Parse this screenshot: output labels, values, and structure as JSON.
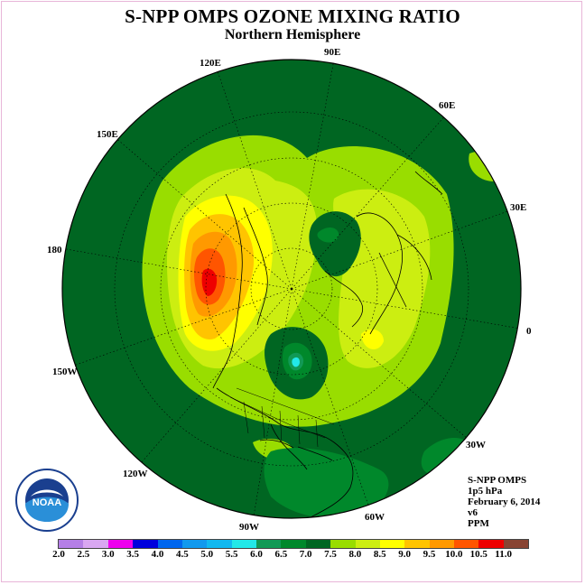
{
  "title": "S-NPP OMPS OZONE MIXING RATIO",
  "subtitle": "Northern Hemisphere",
  "longitude_labels": {
    "lon_90e": "90E",
    "lon_60e": "60E",
    "lon_30e": "30E",
    "lon_0": "0",
    "lon_30w": "30W",
    "lon_60w": "60W",
    "lon_90w": "90W",
    "lon_120w": "120W",
    "lon_150w": "150W",
    "lon_180": "180",
    "lon_150e": "150E",
    "lon_120e": "120E"
  },
  "info": {
    "instrument": "S-NPP OMPS",
    "level": "1p5 hPa",
    "date": "February 6, 2014",
    "version": "v6",
    "units": "PPM"
  },
  "logo_text": "NOAA",
  "colorbar": {
    "labels": [
      "2.0",
      "2.5",
      "3.0",
      "3.5",
      "4.0",
      "4.5",
      "5.0",
      "5.5",
      "6.0",
      "6.5",
      "7.0",
      "7.5",
      "8.0",
      "8.5",
      "9.0",
      "9.5",
      "10.0",
      "10.5",
      "11.0"
    ],
    "colors": [
      "#b57fe6",
      "#d9a7f1",
      "#ee00ee",
      "#0000dd",
      "#0066ee",
      "#1199ee",
      "#11b8f0",
      "#22e8e8",
      "#119955",
      "#00882b",
      "#006622",
      "#99dd00",
      "#ccee11",
      "#ffff00",
      "#ffc400",
      "#ff9900",
      "#ff5500",
      "#ee0000",
      "#884433"
    ]
  },
  "colors": {
    "background_field": "#006622",
    "frame": "#e8b6d8"
  }
}
